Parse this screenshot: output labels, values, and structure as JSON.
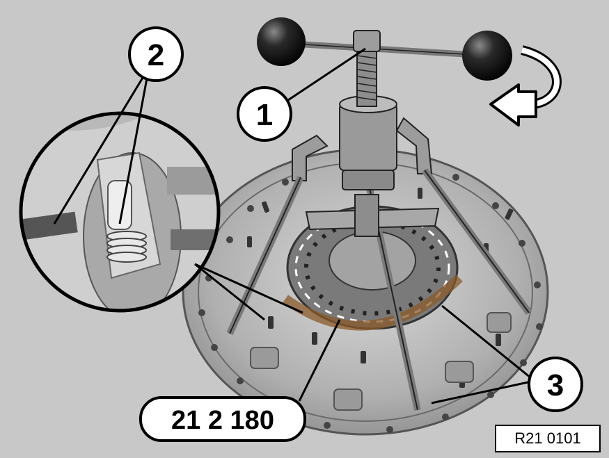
{
  "callouts": {
    "c1": "1",
    "c2": "2",
    "c3": "3"
  },
  "tool_number": "21 2 180",
  "figure_ref": "R21 0101",
  "colors": {
    "background": "#c8c8c8",
    "outline": "#000000",
    "callout_fill": "#ffffff"
  }
}
